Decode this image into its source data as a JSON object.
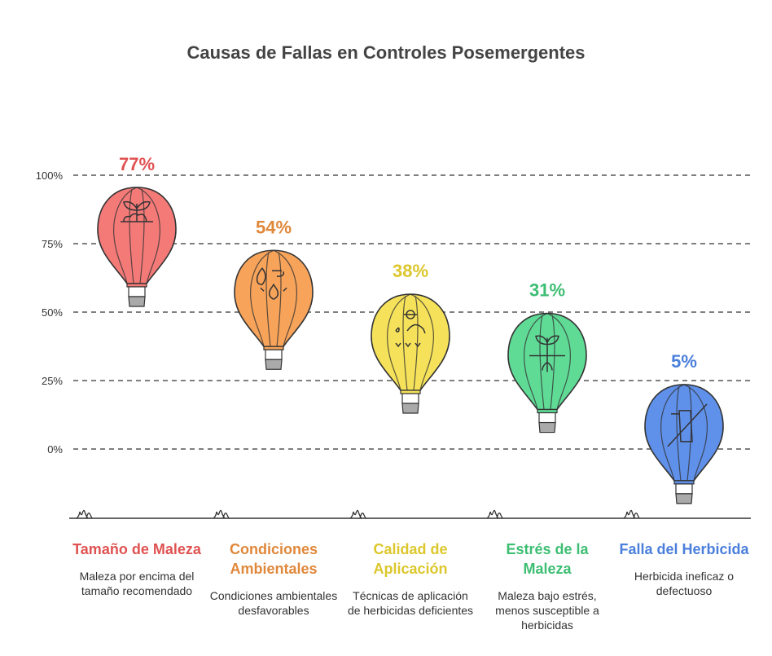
{
  "chart_data": {
    "type": "bar",
    "title": "Causas de Fallas en Controles Posemergentes",
    "xlabel": "",
    "ylabel": "",
    "ylim": [
      0,
      100
    ],
    "yticks": [
      "0%",
      "25%",
      "50%",
      "75%",
      "100%"
    ],
    "grid": true,
    "categories": [
      "Tamaño de Maleza",
      "Condiciones Ambientales",
      "Calidad de Aplicación",
      "Estrés de la Maleza",
      "Falla del Herbicida"
    ],
    "values": [
      77,
      54,
      38,
      31,
      5
    ],
    "value_labels": [
      "77%",
      "54%",
      "38%",
      "31%",
      "5%"
    ],
    "descriptions": [
      "Maleza por encima del tamaño recomendado",
      "Condiciones ambientales desfavorables",
      "Técnicas de aplicación de herbicidas deficientes",
      "Maleza bajo estrés, menos susceptible a herbicidas",
      "Herbicida ineficaz o defectuoso"
    ],
    "icons": [
      "plant-soil-icon",
      "weather-icon",
      "sprayer-person-icon",
      "plant-roots-icon",
      "no-sprayer-icon"
    ],
    "fill_colors": [
      "#f47a78",
      "#f7a35a",
      "#f6e25a",
      "#5fdb96",
      "#5f90ea"
    ],
    "text_colors": [
      "#e05252",
      "#e0883a",
      "#dcc72c",
      "#3dbe73",
      "#4a7fdc"
    ]
  }
}
